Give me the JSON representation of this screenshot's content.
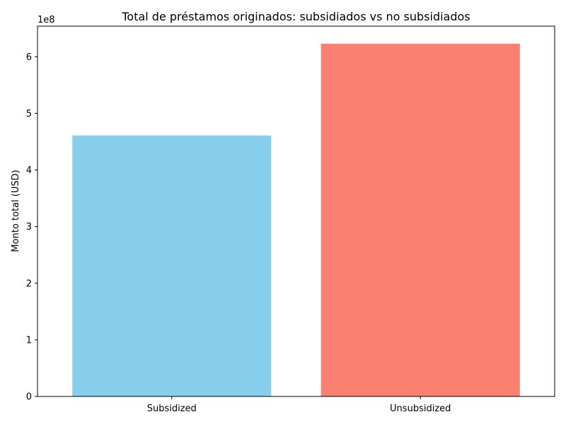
{
  "chart_data": {
    "type": "bar",
    "title": "Total de préstamos originados: subsidiados vs no subsidiados",
    "xlabel": "",
    "ylabel": "Monto total (USD)",
    "categories": [
      "Subsidized",
      "Unsubsidized"
    ],
    "values": [
      461000000,
      623000000
    ],
    "colors": [
      "#87ceeb",
      "#fa8072"
    ],
    "ylim": [
      0,
      654000000
    ],
    "yticks": [
      0,
      100000000,
      200000000,
      300000000,
      400000000,
      500000000,
      600000000
    ],
    "ytick_labels": [
      "0",
      "1",
      "2",
      "3",
      "4",
      "5",
      "6"
    ],
    "y_offset_label": "1e8",
    "grid": false,
    "legend": "none"
  }
}
